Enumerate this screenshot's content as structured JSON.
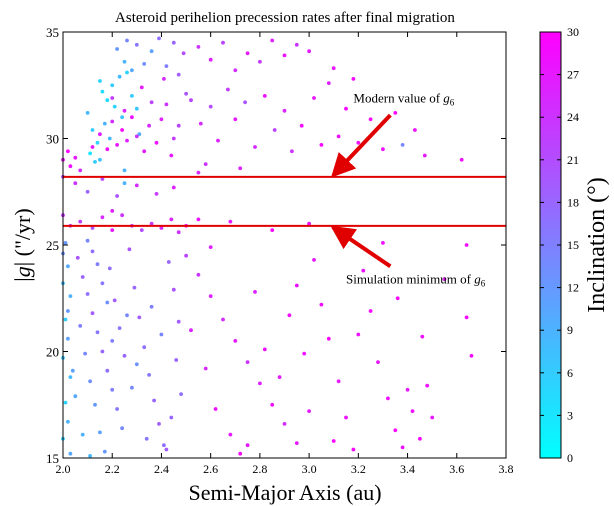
{
  "chart_data": {
    "type": "scatter",
    "title": "Asteroid perihelion precession rates after final migration",
    "xlabel": "Semi-Major Axis (au)",
    "ylabel": "|g| (\"/yr)",
    "xlim": [
      2.0,
      3.8
    ],
    "ylim": [
      15,
      35
    ],
    "xticks": [
      "2.0",
      "2.2",
      "2.4",
      "2.6",
      "2.8",
      "3.0",
      "3.2",
      "3.4",
      "3.6",
      "3.8"
    ],
    "yticks": [
      "15",
      "20",
      "25",
      "30",
      "35"
    ],
    "grid": false,
    "colorbar": {
      "label": "Inclination (°)",
      "min": 0,
      "max": 30,
      "ticks": [
        "0",
        "3",
        "6",
        "9",
        "12",
        "15",
        "18",
        "21",
        "24",
        "27",
        "30"
      ],
      "color_low": "#00ffff",
      "color_high": "#ff00ff"
    },
    "hlines": [
      {
        "y": 28.2,
        "color": "#e00000"
      },
      {
        "y": 25.9,
        "color": "#e00000"
      }
    ],
    "annotations": [
      {
        "text": "Modern value of g",
        "sub": "6",
        "text_x": 3.18,
        "text_y": 31.7,
        "arrow_from": [
          3.33,
          31.1
        ],
        "arrow_to": [
          3.1,
          28.3
        ]
      },
      {
        "text": "Simulation minimum of g",
        "sub": "6",
        "text_x": 3.15,
        "text_y": 23.2,
        "arrow_from": [
          3.33,
          24.0
        ],
        "arrow_to": [
          3.1,
          25.8
        ]
      }
    ],
    "points": [
      [
        2.22,
        34.2,
        12
      ],
      [
        2.25,
        33.6,
        9
      ],
      [
        2.26,
        34.6,
        14
      ],
      [
        2.28,
        33.2,
        10
      ],
      [
        2.3,
        34.4,
        16
      ],
      [
        2.33,
        33.5,
        13
      ],
      [
        2.36,
        34.1,
        11
      ],
      [
        2.39,
        34.7,
        17
      ],
      [
        2.42,
        33.4,
        15
      ],
      [
        2.45,
        34.5,
        18
      ],
      [
        2.1,
        31.2,
        8
      ],
      [
        2.12,
        30.4,
        6
      ],
      [
        2.14,
        29.8,
        5
      ],
      [
        2.15,
        29.0,
        7
      ],
      [
        2.17,
        30.7,
        9
      ],
      [
        2.18,
        31.8,
        4
      ],
      [
        2.2,
        32.5,
        6
      ],
      [
        2.21,
        31.5,
        5
      ],
      [
        2.23,
        32.9,
        8
      ],
      [
        2.24,
        31.0,
        7
      ],
      [
        2.26,
        33.1,
        5
      ],
      [
        2.11,
        29.3,
        3
      ],
      [
        2.13,
        28.9,
        6
      ],
      [
        2.16,
        32.2,
        4
      ],
      [
        2.19,
        30.0,
        8
      ],
      [
        2.25,
        28.5,
        9
      ],
      [
        2.28,
        32.0,
        6
      ],
      [
        2.3,
        31.4,
        7
      ],
      [
        2.31,
        30.2,
        10
      ],
      [
        2.15,
        32.7,
        5
      ],
      [
        2.12,
        29.6,
        27
      ],
      [
        2.15,
        30.2,
        26
      ],
      [
        2.18,
        29.5,
        28
      ],
      [
        2.2,
        30.8,
        25
      ],
      [
        2.22,
        29.7,
        27
      ],
      [
        2.24,
        30.4,
        29
      ],
      [
        2.26,
        29.9,
        26
      ],
      [
        2.28,
        31.0,
        28
      ],
      [
        2.3,
        30.1,
        24
      ],
      [
        2.33,
        29.4,
        27
      ],
      [
        2.35,
        30.6,
        25
      ],
      [
        2.38,
        29.8,
        28
      ],
      [
        2.4,
        30.9,
        26
      ],
      [
        2.42,
        31.6,
        24
      ],
      [
        2.44,
        29.2,
        27
      ],
      [
        2.2,
        31.9,
        23
      ],
      [
        2.25,
        31.3,
        26
      ],
      [
        2.32,
        32.4,
        27
      ],
      [
        2.36,
        31.7,
        22
      ],
      [
        2.41,
        32.8,
        25
      ],
      [
        2.0,
        29.0,
        28
      ],
      [
        2.02,
        29.4,
        29
      ],
      [
        2.05,
        29.1,
        27
      ],
      [
        2.03,
        28.7,
        28
      ],
      [
        2.07,
        28.5,
        25
      ],
      [
        2.45,
        30.0,
        23
      ],
      [
        2.47,
        33.0,
        19
      ],
      [
        2.49,
        34.0,
        21
      ],
      [
        2.5,
        32.1,
        20
      ],
      [
        2.47,
        30.6,
        22
      ],
      [
        2.55,
        34.3,
        24
      ],
      [
        2.6,
        33.7,
        26
      ],
      [
        2.65,
        34.5,
        22
      ],
      [
        2.7,
        33.2,
        25
      ],
      [
        2.75,
        34.0,
        27
      ],
      [
        2.8,
        33.6,
        23
      ],
      [
        2.85,
        34.6,
        26
      ],
      [
        2.9,
        33.9,
        28
      ],
      [
        2.95,
        34.4,
        24
      ],
      [
        3.0,
        34.1,
        27
      ],
      [
        2.52,
        31.8,
        22
      ],
      [
        2.56,
        30.7,
        25
      ],
      [
        2.6,
        31.5,
        21
      ],
      [
        2.63,
        29.9,
        26
      ],
      [
        2.67,
        32.3,
        23
      ],
      [
        2.7,
        30.9,
        27
      ],
      [
        2.74,
        31.7,
        20
      ],
      [
        2.78,
        29.6,
        25
      ],
      [
        2.82,
        32.0,
        28
      ],
      [
        2.86,
        30.4,
        22
      ],
      [
        2.9,
        31.3,
        26
      ],
      [
        2.93,
        29.4,
        24
      ],
      [
        2.97,
        30.6,
        28
      ],
      [
        3.02,
        31.9,
        27
      ],
      [
        3.05,
        29.7,
        29
      ],
      [
        3.08,
        32.6,
        26
      ],
      [
        3.12,
        30.1,
        28
      ],
      [
        3.15,
        31.4,
        29
      ],
      [
        3.2,
        29.8,
        28
      ],
      [
        3.25,
        30.9,
        29
      ],
      [
        3.3,
        29.5,
        28
      ],
      [
        3.35,
        31.2,
        29
      ],
      [
        3.38,
        29.7,
        14
      ],
      [
        3.43,
        30.4,
        28
      ],
      [
        3.47,
        29.2,
        27
      ],
      [
        3.62,
        29.0,
        28
      ],
      [
        3.1,
        33.3,
        27
      ],
      [
        3.18,
        32.8,
        29
      ],
      [
        2.58,
        28.8,
        24
      ],
      [
        2.72,
        28.6,
        26
      ],
      [
        2.0,
        28.2,
        22
      ],
      [
        2.05,
        27.9,
        24
      ],
      [
        2.1,
        27.5,
        18
      ],
      [
        2.22,
        27.3,
        20
      ],
      [
        2.3,
        27.8,
        25
      ],
      [
        2.38,
        27.4,
        23
      ],
      [
        2.25,
        27.9,
        9
      ],
      [
        2.16,
        28.1,
        21
      ],
      [
        2.45,
        27.7,
        26
      ],
      [
        2.55,
        28.4,
        25
      ],
      [
        2.0,
        26.4,
        24
      ],
      [
        2.03,
        25.9,
        22
      ],
      [
        2.07,
        26.1,
        23
      ],
      [
        2.12,
        25.8,
        20
      ],
      [
        2.16,
        26.3,
        25
      ],
      [
        2.2,
        25.7,
        27
      ],
      [
        2.24,
        26.4,
        24
      ],
      [
        2.28,
        25.9,
        22
      ],
      [
        2.32,
        25.7,
        21
      ],
      [
        2.36,
        26.0,
        23
      ],
      [
        2.4,
        25.8,
        25
      ],
      [
        2.44,
        26.2,
        26
      ],
      [
        2.47,
        25.6,
        24
      ],
      [
        2.5,
        25.9,
        27
      ],
      [
        2.55,
        26.2,
        28
      ],
      [
        2.2,
        26.6,
        26
      ],
      [
        2.68,
        26.1,
        27
      ],
      [
        2.85,
        25.7,
        29
      ],
      [
        3.0,
        26.0,
        28
      ],
      [
        3.1,
        25.8,
        28
      ],
      [
        2.01,
        25.1,
        12
      ],
      [
        2.02,
        24.0,
        10
      ],
      [
        2.0,
        23.2,
        8
      ],
      [
        2.03,
        22.6,
        9
      ],
      [
        2.01,
        21.5,
        6
      ],
      [
        2.02,
        20.6,
        11
      ],
      [
        2.0,
        19.7,
        7
      ],
      [
        2.03,
        18.8,
        8
      ],
      [
        2.01,
        17.6,
        5
      ],
      [
        2.02,
        16.7,
        9
      ],
      [
        2.0,
        15.9,
        6
      ],
      [
        2.03,
        15.2,
        10
      ],
      [
        2.0,
        24.6,
        13
      ],
      [
        2.02,
        21.9,
        12
      ],
      [
        2.04,
        19.1,
        11
      ],
      [
        2.06,
        24.4,
        20
      ],
      [
        2.08,
        23.5,
        18
      ],
      [
        2.1,
        22.7,
        17
      ],
      [
        2.12,
        21.8,
        19
      ],
      [
        2.14,
        20.9,
        16
      ],
      [
        2.16,
        20.0,
        18
      ],
      [
        2.18,
        19.1,
        17
      ],
      [
        2.2,
        18.2,
        15
      ],
      [
        2.22,
        17.3,
        16
      ],
      [
        2.24,
        16.4,
        14
      ],
      [
        2.07,
        21.2,
        15
      ],
      [
        2.09,
        19.9,
        14
      ],
      [
        2.11,
        18.6,
        13
      ],
      [
        2.13,
        17.5,
        12
      ],
      [
        2.15,
        16.2,
        11
      ],
      [
        2.17,
        15.3,
        12
      ],
      [
        2.19,
        23.9,
        17
      ],
      [
        2.21,
        22.4,
        19
      ],
      [
        2.23,
        21.1,
        16
      ],
      [
        2.25,
        19.8,
        18
      ],
      [
        2.27,
        24.8,
        20
      ],
      [
        2.29,
        23.0,
        18
      ],
      [
        2.31,
        21.6,
        19
      ],
      [
        2.33,
        20.2,
        17
      ],
      [
        2.35,
        18.9,
        16
      ],
      [
        2.37,
        17.7,
        18
      ],
      [
        2.39,
        16.6,
        19
      ],
      [
        2.41,
        15.6,
        17
      ],
      [
        2.43,
        24.2,
        18
      ],
      [
        2.45,
        22.9,
        20
      ],
      [
        2.47,
        21.4,
        19
      ],
      [
        2.46,
        19.6,
        18
      ],
      [
        2.48,
        18.0,
        17
      ],
      [
        2.44,
        16.9,
        18
      ],
      [
        2.42,
        15.4,
        19
      ],
      [
        2.12,
        24.7,
        17
      ],
      [
        2.16,
        23.2,
        16
      ],
      [
        2.2,
        20.5,
        15
      ],
      [
        2.28,
        18.3,
        14
      ],
      [
        2.34,
        15.9,
        16
      ],
      [
        2.1,
        25.2,
        14
      ],
      [
        2.14,
        24.1,
        15
      ],
      [
        2.18,
        22.3,
        13
      ],
      [
        2.26,
        21.7,
        14
      ],
      [
        2.3,
        19.4,
        13
      ],
      [
        2.36,
        22.1,
        15
      ],
      [
        2.4,
        20.8,
        14
      ],
      [
        2.05,
        17.9,
        10
      ],
      [
        2.08,
        16.1,
        9
      ],
      [
        2.11,
        15.1,
        8
      ],
      [
        2.5,
        24.5,
        22
      ],
      [
        2.55,
        23.6,
        24
      ],
      [
        2.6,
        22.6,
        26
      ],
      [
        2.65,
        21.5,
        25
      ],
      [
        2.7,
        20.5,
        27
      ],
      [
        2.75,
        19.5,
        24
      ],
      [
        2.8,
        18.5,
        26
      ],
      [
        2.85,
        17.5,
        28
      ],
      [
        2.9,
        16.6,
        25
      ],
      [
        2.95,
        15.7,
        27
      ],
      [
        2.52,
        21.0,
        26
      ],
      [
        2.58,
        19.2,
        25
      ],
      [
        2.62,
        17.3,
        28
      ],
      [
        2.68,
        16.1,
        27
      ],
      [
        2.72,
        15.2,
        29
      ],
      [
        2.78,
        22.8,
        26
      ],
      [
        2.82,
        20.1,
        28
      ],
      [
        2.88,
        18.8,
        27
      ],
      [
        2.92,
        21.7,
        29
      ],
      [
        2.98,
        19.9,
        28
      ],
      [
        3.02,
        24.3,
        27
      ],
      [
        3.05,
        22.2,
        28
      ],
      [
        3.08,
        20.6,
        29
      ],
      [
        3.12,
        18.6,
        27
      ],
      [
        3.15,
        16.9,
        28
      ],
      [
        3.18,
        15.4,
        29
      ],
      [
        3.22,
        23.8,
        28
      ],
      [
        3.25,
        21.9,
        29
      ],
      [
        3.28,
        19.5,
        27
      ],
      [
        3.32,
        17.8,
        28
      ],
      [
        3.35,
        16.3,
        29
      ],
      [
        3.38,
        15.5,
        28
      ],
      [
        3.4,
        18.2,
        27
      ],
      [
        3.42,
        17.2,
        28
      ],
      [
        3.45,
        15.9,
        29
      ],
      [
        3.48,
        18.4,
        28
      ],
      [
        3.5,
        16.9,
        27
      ],
      [
        3.36,
        22.5,
        29
      ],
      [
        3.2,
        20.8,
        28
      ],
      [
        3.0,
        17.2,
        27
      ],
      [
        3.64,
        25.0,
        28
      ],
      [
        3.64,
        21.6,
        29
      ],
      [
        3.66,
        19.8,
        28
      ],
      [
        3.55,
        23.4,
        27
      ],
      [
        3.46,
        20.7,
        28
      ],
      [
        3.1,
        15.8,
        29
      ],
      [
        2.95,
        23.1,
        28
      ],
      [
        2.75,
        15.6,
        27
      ],
      [
        2.6,
        24.9,
        26
      ],
      [
        3.3,
        25.1,
        28
      ]
    ]
  }
}
